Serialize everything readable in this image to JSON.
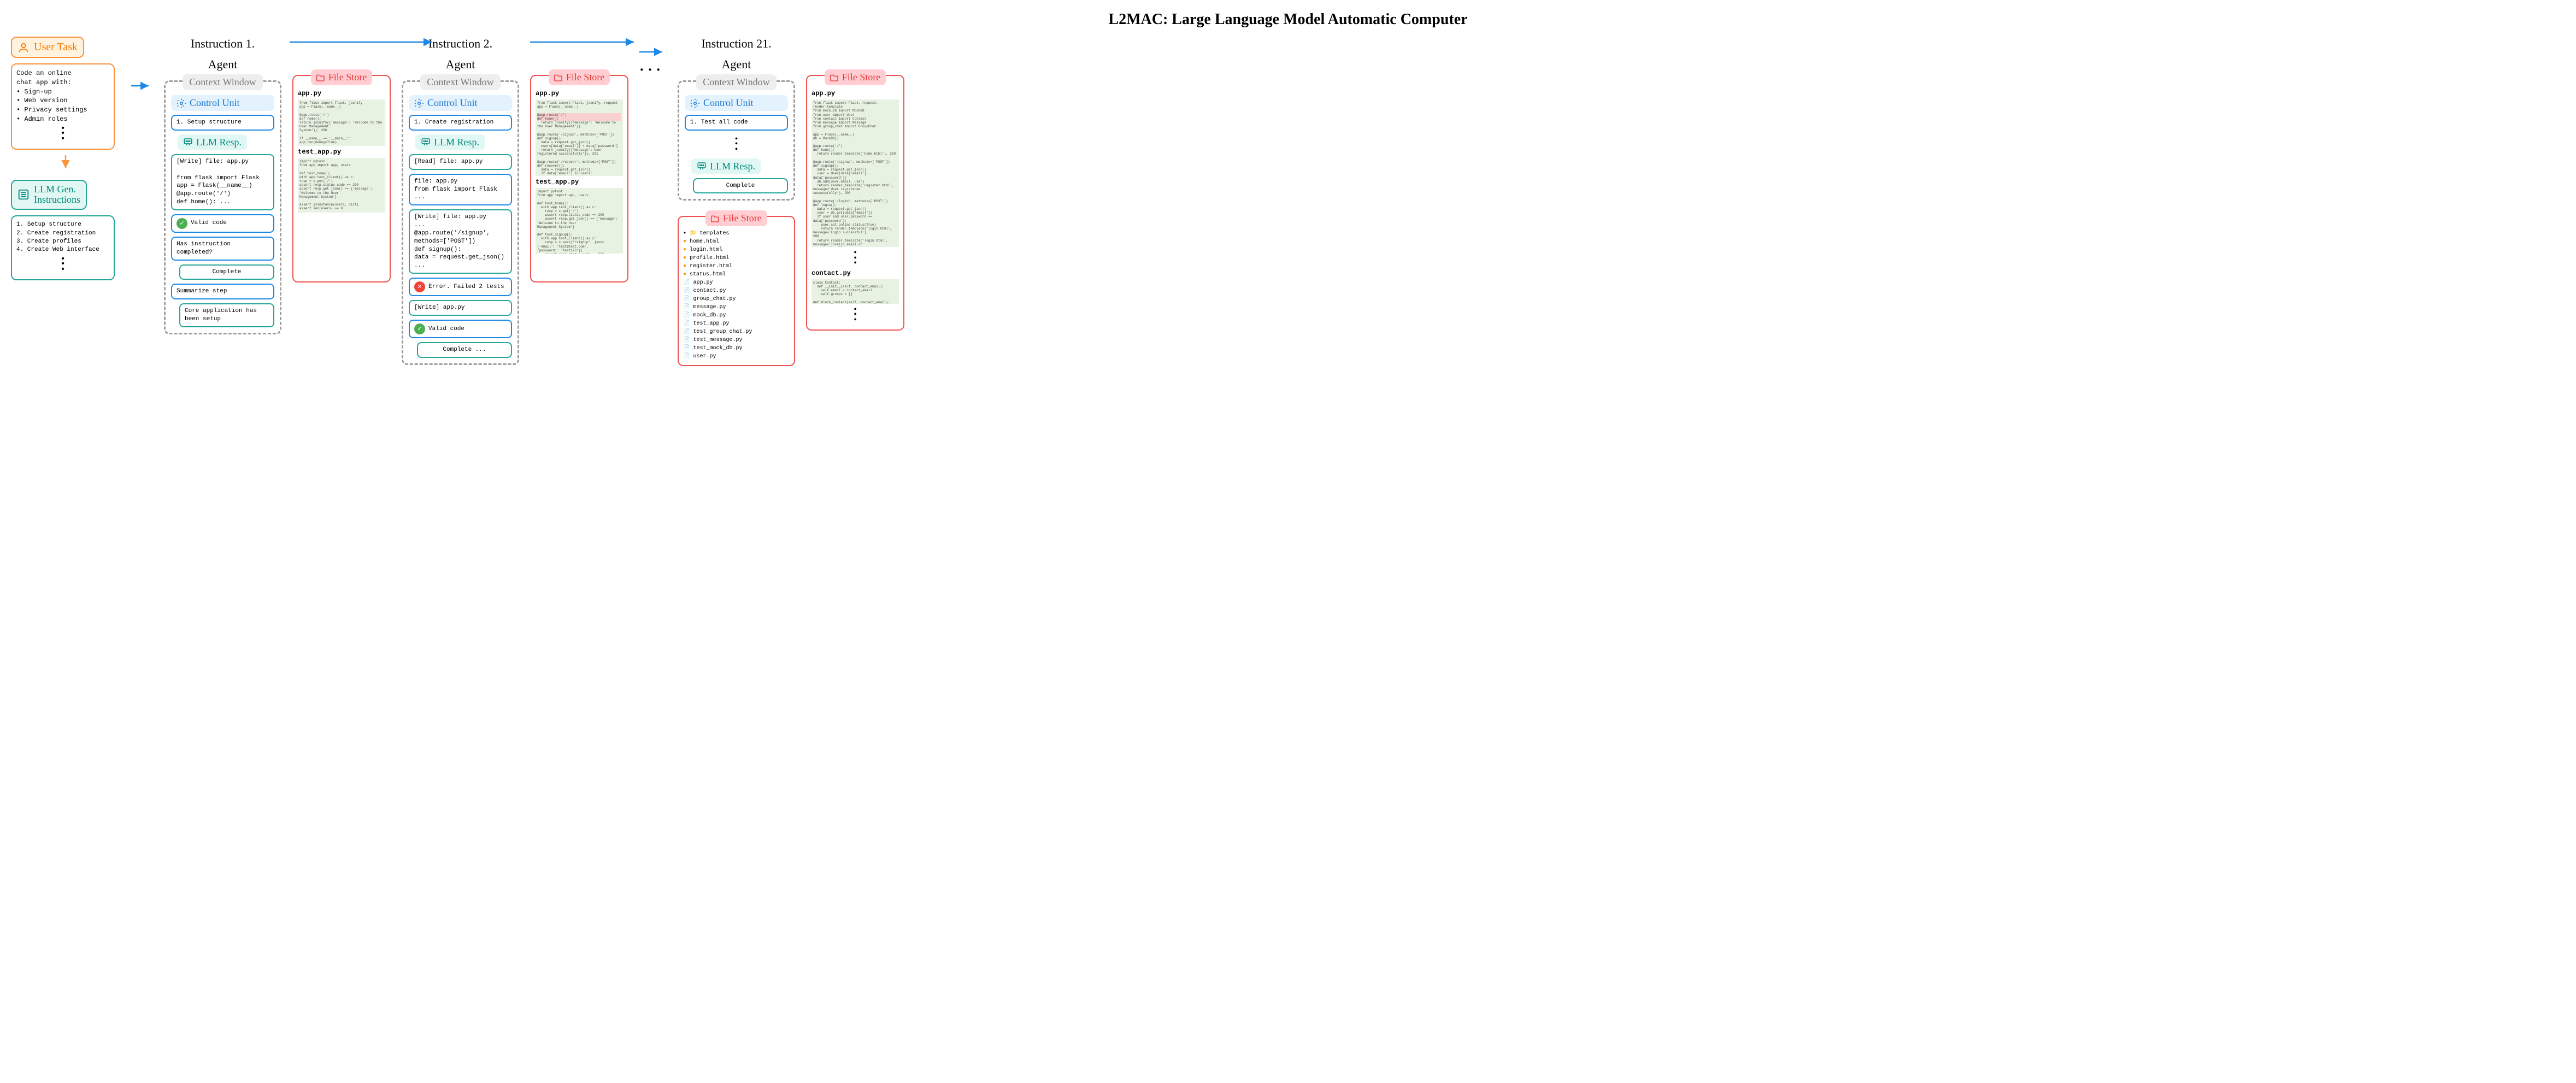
{
  "title": "L2MAC: Large Language Model Automatic Computer",
  "colors": {
    "orange": "#fb923c",
    "orange_bg": "#fff3e0",
    "orange_text": "#f57c00",
    "teal": "#26a69a",
    "teal_bg": "#e0f7f4",
    "teal_text": "#00897b",
    "blue": "#1e88e5",
    "blue_bg": "#e3f2fd",
    "blue_text": "#1976d2",
    "red": "#ef5350",
    "red_bg": "#ffcdd2",
    "red_text": "#e53935",
    "gray": "#9e9e9e",
    "code_bg": "#e8f2e2",
    "green": "#4caf50",
    "error_red": "#f44336"
  },
  "user_task": {
    "header": "User Task",
    "body": "Code an online\nchat app with:\n• Sign-up\n• Web version\n• Privacy settings\n• Admin roles"
  },
  "gen_instr": {
    "header": "LLM Gen.\nInstructions",
    "body": "1. Setup structure\n2. Create registration\n3. Create profiles\n4. Create Web interface"
  },
  "labels": {
    "context_window": "Context Window",
    "control_unit": "Control Unit",
    "llm_resp": "LLM Resp.",
    "file_store": "File Store",
    "agent": "Agent"
  },
  "agent1": {
    "instr": "Instruction 1.",
    "cu_box": "1. Setup structure",
    "write": "[Write] file: app.py\n\nfrom flask import Flask\napp = Flask(__name__)\n@app.route('/')\ndef home(): ...",
    "valid": "Valid code",
    "q": "Has instruction completed?",
    "complete": "Complete",
    "sum": "Summarize step",
    "sum_out": "Core application has been setup",
    "fs": {
      "f1": "app.py",
      "c1": "from flask import Flask, jsonify\napp = Flask(__name__)\n\n@app.route('/')\ndef home():\n  return jsonify({'message': 'Welcome to the User Management\nSystem'}), 200\n\nif __name__ == '__main__':\n  app.run(debug=True)",
      "f2": "test_app.py",
      "c2": "import pytest\nfrom app import app, users\n\ndef test_home():\n  with app.test_client() as c:\n    resp = c.get('/')\n    assert resp.status_code == 200\n    assert resp.get_json() == {'message': 'Welcome to the User\nManagement System'}\n\nassert isinstance(users, dict)\nassert len(users) == 0"
    }
  },
  "agent2": {
    "instr": "Instruction 2.",
    "cu_box": "1. Create registration",
    "read": "[Read] file: app.py",
    "file": "file: app.py\nfrom flask import Flask ...",
    "write": "[Write] file: app.py\n...\n@app.route('/signup',\nmethods=['POST'])\ndef signup():\n  data = request.get_json()\n...",
    "error": "Error. Failed 2 tests",
    "write2": "[Write] app.py",
    "valid": "Valid code",
    "complete": "Complete ...",
    "fs": {
      "f1": "app.py",
      "f2": "test_app.py"
    }
  },
  "agent21": {
    "instr": "Instruction 21.",
    "cu_box": "1. Test all code",
    "complete": "Complete",
    "tree": {
      "folder": "templates",
      "html": [
        "home.html",
        "login.html",
        "profile.html",
        "register.html",
        "status.html"
      ],
      "py": [
        "app.py",
        "contact.py",
        "group_chat.py",
        "message.py",
        "mock_db.py",
        "test_app.py",
        "test_group_chat.py",
        "test_message.py",
        "test_mock_db.py",
        "user.py"
      ]
    },
    "fs2": {
      "f1": "app.py",
      "f2": "contact.py"
    }
  }
}
